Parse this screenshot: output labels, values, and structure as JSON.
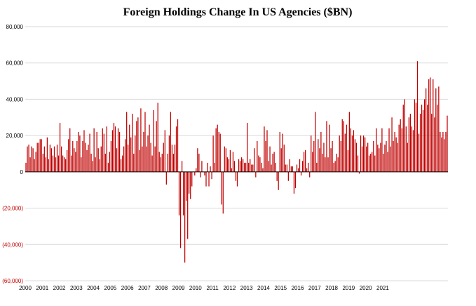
{
  "chart_data": {
    "type": "bar",
    "title": "Foreign Holdings Change In US Agencies ($BN)",
    "xlabel": "",
    "ylabel": "",
    "ylim": [
      -60000,
      80000
    ],
    "grid": true,
    "legend": "none",
    "colors": {
      "bar": "#c00000",
      "negative_tick": "#c00000",
      "positive_tick": "#000000",
      "grid": "#d9d9d9"
    },
    "y_ticks": [
      80000,
      60000,
      40000,
      20000,
      0,
      -20000,
      -40000,
      -60000
    ],
    "y_tick_labels": [
      "80,000",
      "60,000",
      "40,000",
      "20,000",
      "0",
      "(20,000)",
      "(40,000)",
      "(60,000)"
    ],
    "x_tick_labels": [
      "2000",
      "2001",
      "2002",
      "2003",
      "2004",
      "2005",
      "2006",
      "2007",
      "2008",
      "2009",
      "2010",
      "2011",
      "2012",
      "2013",
      "2014",
      "2015",
      "2016",
      "2017",
      "2018",
      "2019",
      "2020",
      "2021"
    ],
    "x_start": "2000-01",
    "frequency": "monthly",
    "values": [
      5000,
      14000,
      15000,
      8000,
      14000,
      13000,
      7000,
      11000,
      16000,
      16000,
      18000,
      18000,
      10000,
      14000,
      8000,
      19000,
      7000,
      15000,
      13000,
      9000,
      14000,
      8000,
      15000,
      9000,
      27000,
      14000,
      9000,
      8000,
      7000,
      12000,
      18000,
      24000,
      9000,
      17000,
      13000,
      11000,
      17000,
      22000,
      20000,
      8000,
      17000,
      23000,
      16000,
      12000,
      15000,
      21000,
      10000,
      6000,
      24000,
      8000,
      22000,
      13000,
      7000,
      14000,
      24000,
      21000,
      10000,
      25000,
      5000,
      11000,
      17000,
      23000,
      27000,
      25000,
      13000,
      24000,
      22000,
      7000,
      9000,
      14000,
      18000,
      33000,
      15000,
      26000,
      19000,
      32000,
      10000,
      20000,
      28000,
      30000,
      12000,
      35000,
      14000,
      22000,
      33000,
      14000,
      20000,
      26000,
      16000,
      9000,
      34000,
      14000,
      28000,
      38000,
      11000,
      8000,
      10000,
      16000,
      23000,
      -7000,
      10000,
      20000,
      33000,
      15000,
      10000,
      15000,
      25000,
      29000,
      -24000,
      -42000,
      6000,
      -24000,
      -50000,
      -16000,
      -37000,
      -12000,
      -15000,
      -8000,
      0,
      -2000,
      2000,
      13000,
      10000,
      -3000,
      6000,
      0,
      -2000,
      -8000,
      5000,
      -8000,
      3000,
      -4000,
      20000,
      5000,
      24000,
      26000,
      22000,
      21000,
      -18000,
      -23000,
      14000,
      13000,
      8000,
      7000,
      12000,
      2000,
      11000,
      6000,
      -5000,
      -8000,
      7000,
      6000,
      8000,
      7000,
      5000,
      5000,
      27000,
      5000,
      7000,
      4000,
      4000,
      13000,
      -3000,
      17000,
      9000,
      8000,
      5000,
      2000,
      25000,
      17000,
      23000,
      6000,
      14000,
      4000,
      10000,
      11000,
      5000,
      -5000,
      -10000,
      22000,
      13000,
      21000,
      15000,
      4000,
      4000,
      -5000,
      7000,
      3000,
      3000,
      -12000,
      -9000,
      4000,
      2000,
      7000,
      -2000,
      6000,
      11000,
      12000,
      2000,
      5000,
      -3000,
      20000,
      11000,
      17000,
      33000,
      5000,
      18000,
      13000,
      22000,
      10000,
      16000,
      8000,
      28000,
      8000,
      26000,
      13000,
      17000,
      5000,
      6000,
      10000,
      8000,
      20000,
      17000,
      29000,
      28000,
      21000,
      26000,
      12000,
      33000,
      24000,
      20000,
      23000,
      18000,
      16000,
      9000,
      -1000,
      20000,
      14000,
      20000,
      19000,
      14000,
      16000,
      9000,
      10000,
      11000,
      17000,
      9000,
      24000,
      15000,
      13000,
      16000,
      24000,
      10000,
      15000,
      17000,
      11000,
      24000,
      14000,
      30000,
      17000,
      22000,
      19000,
      16000,
      26000,
      29000,
      24000,
      37000,
      40000,
      25000,
      16000,
      30000,
      32000,
      25000,
      23000,
      40000,
      38000,
      61000,
      21000,
      32000,
      37000,
      34000,
      40000,
      46000,
      37000,
      51000,
      52000,
      32000,
      51000,
      30000,
      46000,
      37000,
      47000,
      22000,
      19000,
      22000,
      18000,
      22000,
      31000
    ]
  }
}
